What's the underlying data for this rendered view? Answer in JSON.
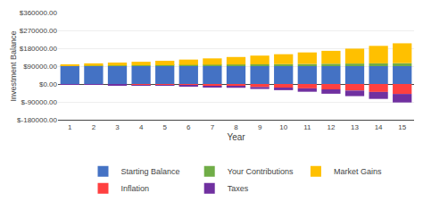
{
  "chart_data": {
    "type": "bar",
    "stacked": true,
    "grid": true,
    "legend": "bottom",
    "xlabel": "Year",
    "ylabel": "Investment Balance",
    "categories": [
      "1",
      "2",
      "3",
      "4",
      "5",
      "6",
      "7",
      "8",
      "9",
      "10",
      "11",
      "12",
      "13",
      "14",
      "15"
    ],
    "series": [
      {
        "name": "Starting Balance",
        "color": "#4472c4",
        "values": [
          90000,
          90000,
          90000,
          90000,
          90000,
          90000,
          90000,
          90000,
          90000,
          90000,
          90000,
          90000,
          90000,
          90000,
          90000
        ]
      },
      {
        "name": "Your Contributions",
        "color": "#70ad47",
        "values": [
          1000,
          2000,
          3000,
          4000,
          5000,
          6000,
          7000,
          8000,
          9000,
          10000,
          11000,
          12000,
          13000,
          14000,
          15000
        ]
      },
      {
        "name": "Market Gains",
        "color": "#ffc000",
        "values": [
          8000,
          12000,
          15000,
          18000,
          22000,
          27000,
          32000,
          38000,
          44000,
          50000,
          58000,
          65000,
          75000,
          88000,
          100000
        ]
      },
      {
        "name": "Inflation",
        "color": "#ff4040",
        "values": [
          -2000,
          -3000,
          -4000,
          -5000,
          -6000,
          -7000,
          -10000,
          -12000,
          -15000,
          -18000,
          -22000,
          -27000,
          -33000,
          -40000,
          -50000
        ]
      },
      {
        "name": "Taxes",
        "color": "#7030a0",
        "values": [
          -500,
          -1000,
          -1500,
          -2000,
          -2500,
          -3500,
          -5000,
          -7000,
          -10000,
          -13000,
          -17000,
          -22000,
          -28000,
          -35000,
          -43000
        ]
      }
    ],
    "ylim": [
      -180000,
      360000
    ],
    "yticks": [
      {
        "value": -180000,
        "label": "$-180000.00"
      },
      {
        "value": -90000,
        "label": "$-90000.00"
      },
      {
        "value": 0,
        "label": "$0.00"
      },
      {
        "value": 90000,
        "label": "$90000.00"
      },
      {
        "value": 180000,
        "label": "$180000.00"
      },
      {
        "value": 270000,
        "label": "$270000.00"
      },
      {
        "value": 360000,
        "label": "$360000.00"
      }
    ]
  }
}
